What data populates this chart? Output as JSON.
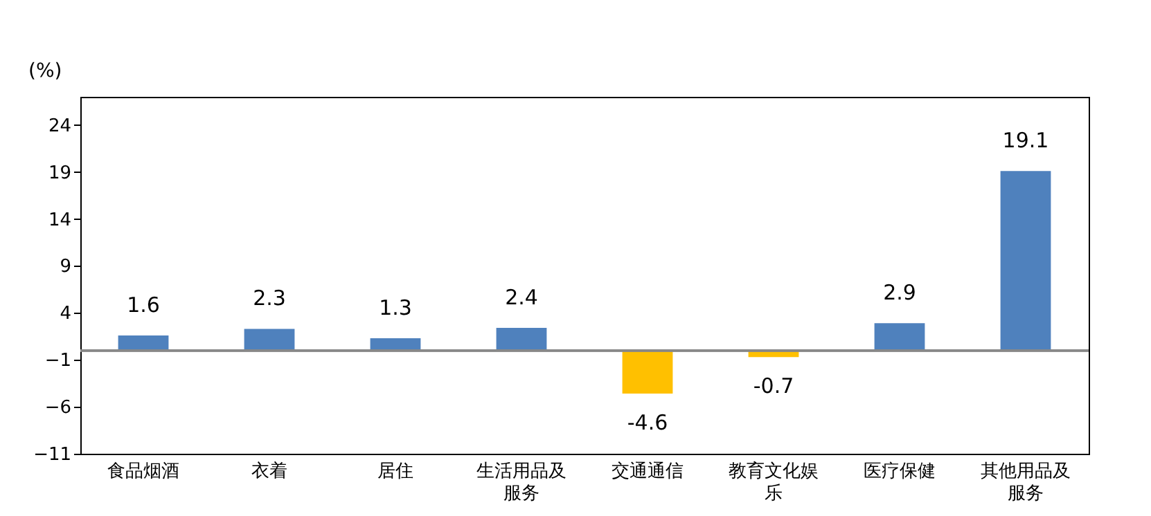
{
  "chart_data": {
    "type": "bar",
    "ylabel": "(%)",
    "categories": [
      "食品烟酒",
      "衣着",
      "居住",
      "生活用品及服务",
      "交通通信",
      "教育文化娱乐",
      "医疗保健",
      "其他用品及服务"
    ],
    "values": [
      1.6,
      2.3,
      1.3,
      2.4,
      -4.6,
      -0.7,
      2.9,
      19.1
    ],
    "colors": [
      "#4f81bd",
      "#4f81bd",
      "#4f81bd",
      "#4f81bd",
      "#ffc000",
      "#ffc000",
      "#4f81bd",
      "#4f81bd"
    ],
    "ylim": [
      -11,
      27
    ],
    "yticks": [
      -11,
      -6,
      -1,
      4,
      9,
      14,
      19,
      24
    ],
    "grid": false,
    "data_labels": true
  }
}
